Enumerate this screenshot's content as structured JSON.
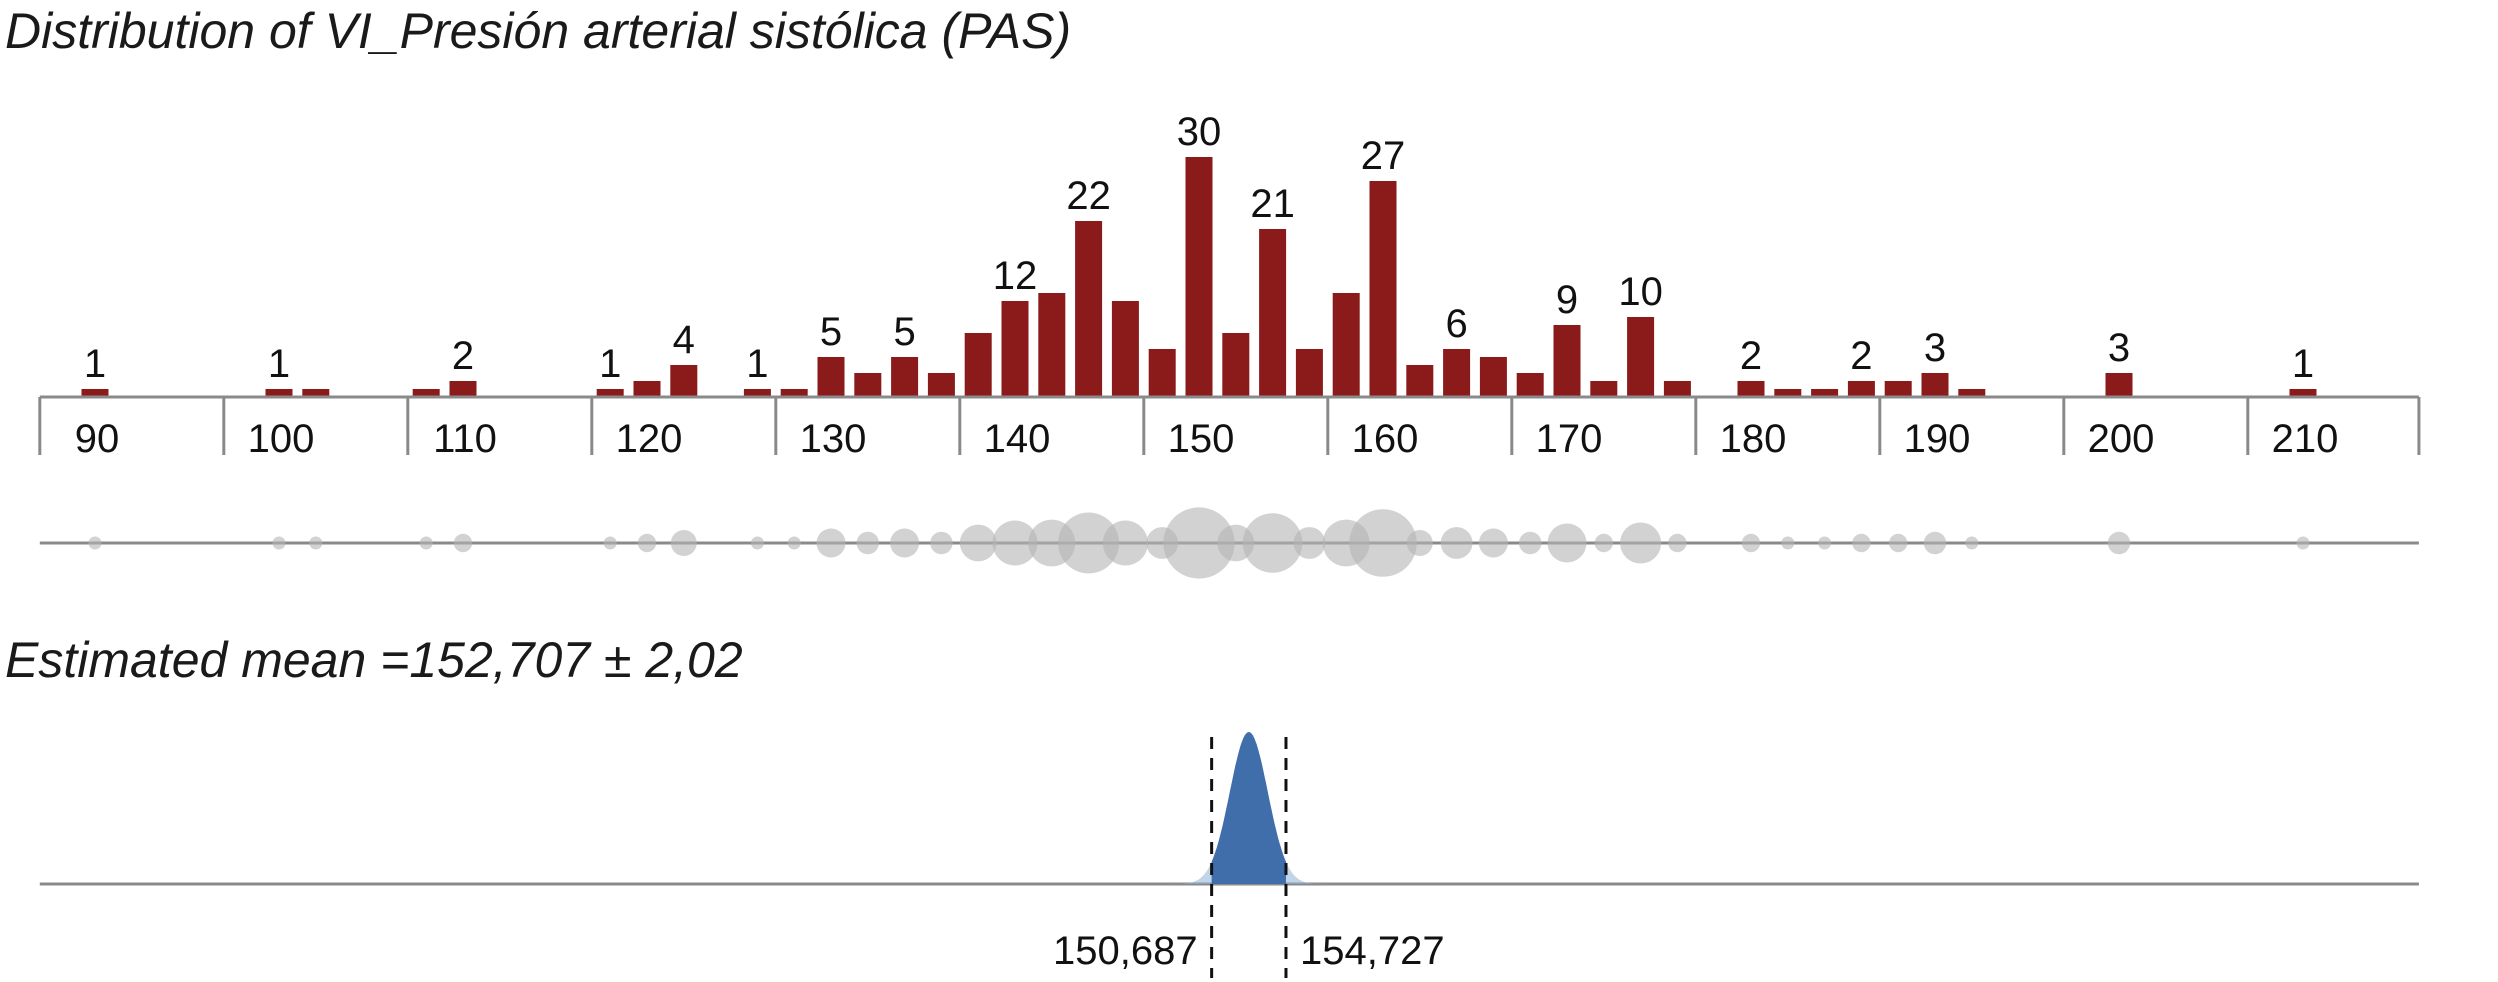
{
  "chart_data": {
    "type": "bar",
    "title": "Distribution of VI_Presión arterial sistólica (PAS)",
    "xlim": [
      88,
      219
    ],
    "bin_width": 2,
    "x_ticks": [
      90,
      100,
      110,
      120,
      130,
      140,
      150,
      160,
      170,
      180,
      190,
      200,
      210
    ],
    "bins": [
      {
        "x": 90,
        "count": 1,
        "label": "1"
      },
      {
        "x": 100,
        "count": 1,
        "label": "1"
      },
      {
        "x": 102,
        "count": 1,
        "label": ""
      },
      {
        "x": 108,
        "count": 1,
        "label": ""
      },
      {
        "x": 110,
        "count": 2,
        "label": "2"
      },
      {
        "x": 118,
        "count": 1,
        "label": "1"
      },
      {
        "x": 120,
        "count": 2,
        "label": ""
      },
      {
        "x": 122,
        "count": 4,
        "label": "4"
      },
      {
        "x": 126,
        "count": 1,
        "label": "1"
      },
      {
        "x": 128,
        "count": 1,
        "label": ""
      },
      {
        "x": 130,
        "count": 5,
        "label": "5"
      },
      {
        "x": 132,
        "count": 3,
        "label": ""
      },
      {
        "x": 134,
        "count": 5,
        "label": "5"
      },
      {
        "x": 136,
        "count": 3,
        "label": ""
      },
      {
        "x": 138,
        "count": 8,
        "label": ""
      },
      {
        "x": 140,
        "count": 12,
        "label": "12"
      },
      {
        "x": 142,
        "count": 13,
        "label": ""
      },
      {
        "x": 144,
        "count": 22,
        "label": "22"
      },
      {
        "x": 146,
        "count": 12,
        "label": ""
      },
      {
        "x": 148,
        "count": 6,
        "label": ""
      },
      {
        "x": 150,
        "count": 30,
        "label": "30"
      },
      {
        "x": 152,
        "count": 8,
        "label": ""
      },
      {
        "x": 154,
        "count": 21,
        "label": "21"
      },
      {
        "x": 156,
        "count": 6,
        "label": ""
      },
      {
        "x": 158,
        "count": 13,
        "label": ""
      },
      {
        "x": 160,
        "count": 27,
        "label": "27"
      },
      {
        "x": 162,
        "count": 4,
        "label": ""
      },
      {
        "x": 164,
        "count": 6,
        "label": "6"
      },
      {
        "x": 166,
        "count": 5,
        "label": ""
      },
      {
        "x": 168,
        "count": 3,
        "label": ""
      },
      {
        "x": 170,
        "count": 9,
        "label": "9"
      },
      {
        "x": 172,
        "count": 2,
        "label": ""
      },
      {
        "x": 174,
        "count": 10,
        "label": "10"
      },
      {
        "x": 176,
        "count": 2,
        "label": ""
      },
      {
        "x": 180,
        "count": 2,
        "label": "2"
      },
      {
        "x": 182,
        "count": 1,
        "label": ""
      },
      {
        "x": 184,
        "count": 1,
        "label": ""
      },
      {
        "x": 186,
        "count": 2,
        "label": "2"
      },
      {
        "x": 188,
        "count": 2,
        "label": ""
      },
      {
        "x": 190,
        "count": 3,
        "label": "3"
      },
      {
        "x": 192,
        "count": 1,
        "label": ""
      },
      {
        "x": 200,
        "count": 3,
        "label": "3"
      },
      {
        "x": 210,
        "count": 1,
        "label": "1"
      }
    ],
    "mean_estimate": {
      "label": "Estimated mean =152,707 ± 2,02",
      "mean": 152.707,
      "ci_low": 150.687,
      "ci_high": 154.727,
      "ci_low_label": "150,687",
      "ci_high_label": "154,727"
    },
    "colors": {
      "bar": "#8b1a1a",
      "axis": "#8a8a8a",
      "dot": "#b4b4b4",
      "density": "#3f6eaa",
      "density_light": "#8fb0d6"
    }
  }
}
